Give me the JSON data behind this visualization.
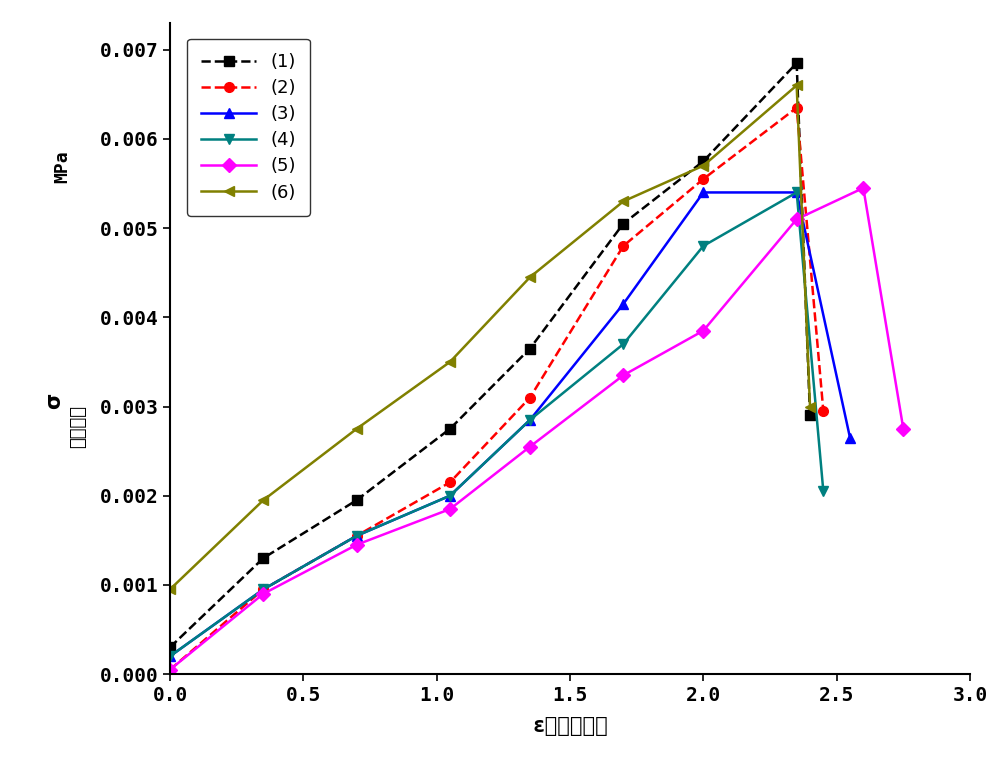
{
  "series": [
    {
      "label": "(1)",
      "color": "#000000",
      "linestyle": "--",
      "marker": "s",
      "markersize": 7,
      "linewidth": 1.8,
      "x": [
        0.0,
        0.35,
        0.7,
        1.05,
        1.35,
        1.7,
        2.0,
        2.35,
        2.4
      ],
      "y": [
        0.0003,
        0.0013,
        0.00195,
        0.00275,
        0.00365,
        0.00505,
        0.00575,
        0.00685,
        0.0029
      ]
    },
    {
      "label": "(2)",
      "color": "#ff0000",
      "linestyle": "--",
      "marker": "o",
      "markersize": 7,
      "linewidth": 1.8,
      "x": [
        0.0,
        0.35,
        0.7,
        1.05,
        1.35,
        1.7,
        2.0,
        2.35,
        2.45
      ],
      "y": [
        5e-05,
        0.00095,
        0.00155,
        0.00215,
        0.0031,
        0.0048,
        0.00555,
        0.00635,
        0.00295
      ]
    },
    {
      "label": "(3)",
      "color": "#0000ff",
      "linestyle": "-",
      "marker": "^",
      "markersize": 7,
      "linewidth": 1.8,
      "x": [
        0.0,
        0.35,
        0.7,
        1.05,
        1.35,
        1.7,
        2.0,
        2.35,
        2.55
      ],
      "y": [
        0.0002,
        0.00095,
        0.00155,
        0.002,
        0.00285,
        0.00415,
        0.0054,
        0.0054,
        0.00265
      ]
    },
    {
      "label": "(4)",
      "color": "#008080",
      "linestyle": "-",
      "marker": "v",
      "markersize": 7,
      "linewidth": 1.8,
      "x": [
        0.0,
        0.35,
        0.7,
        1.05,
        1.35,
        1.7,
        2.0,
        2.35,
        2.45
      ],
      "y": [
        0.0002,
        0.00095,
        0.00155,
        0.002,
        0.00285,
        0.0037,
        0.0048,
        0.0054,
        0.00205
      ]
    },
    {
      "label": "(5)",
      "color": "#ff00ff",
      "linestyle": "-",
      "marker": "D",
      "markersize": 7,
      "linewidth": 1.8,
      "x": [
        0.0,
        0.35,
        0.7,
        1.05,
        1.35,
        1.7,
        2.0,
        2.35,
        2.6,
        2.75
      ],
      "y": [
        5e-05,
        0.0009,
        0.00145,
        0.00185,
        0.00255,
        0.00335,
        0.00385,
        0.0051,
        0.00545,
        0.00275
      ]
    },
    {
      "label": "(6)",
      "color": "#808000",
      "linestyle": "-",
      "marker": "<",
      "markersize": 7,
      "linewidth": 1.8,
      "x": [
        0.0,
        0.35,
        0.7,
        1.05,
        1.35,
        1.7,
        2.0,
        2.35,
        2.4
      ],
      "y": [
        0.00095,
        0.00195,
        0.00275,
        0.0035,
        0.00445,
        0.0053,
        0.0057,
        0.0066,
        0.003
      ]
    }
  ],
  "xlabel": "ε（应变）％",
  "ylabel_sigma": "σ",
  "ylabel_stress": "（应力）",
  "ylabel_mpa": "MPa",
  "xlim": [
    0.0,
    3.0
  ],
  "ylim": [
    0.0,
    0.0073
  ],
  "xticks": [
    0.0,
    0.5,
    1.0,
    1.5,
    2.0,
    2.5,
    3.0
  ],
  "xtick_labels": [
    "0.0",
    "0.5",
    "1.0",
    "1.5",
    "2.0",
    "2.5",
    "3.0"
  ],
  "yticks": [
    0.0,
    0.001,
    0.002,
    0.003,
    0.004,
    0.005,
    0.006,
    0.007
  ],
  "ytick_labels": [
    "0.000",
    "0.001",
    "0.002",
    "0.003",
    "0.004",
    "0.005",
    "0.006",
    "0.007"
  ],
  "background_color": "#ffffff",
  "fig_width": 10.0,
  "fig_height": 7.66,
  "dpi": 100
}
